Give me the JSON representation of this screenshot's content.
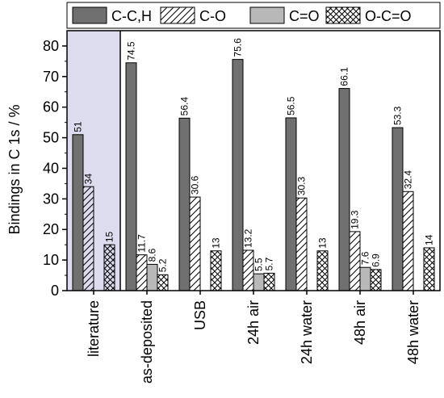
{
  "chart_data": {
    "type": "bar",
    "title": "",
    "xlabel": "",
    "ylabel": "Bindings in C 1s / %",
    "ylim": [
      0,
      85
    ],
    "yticks": [
      0,
      10,
      20,
      30,
      40,
      50,
      60,
      70,
      80
    ],
    "legend_position": "top",
    "grid": false,
    "categories": [
      "literature",
      "as-deposited",
      "USB",
      "24h air",
      "24h water",
      "48h air",
      "48h water"
    ],
    "highlight_category": "literature",
    "highlight_color": "#dcdcee",
    "series": [
      {
        "name": "C-C,H",
        "pattern": "solid-dark",
        "color": "#707070",
        "values": [
          51,
          74.5,
          56.4,
          75.6,
          56.5,
          66.1,
          53.3
        ],
        "labels": [
          "51",
          "74.5",
          "56.4",
          "75.6",
          "56.5",
          "66.1",
          "53.3"
        ]
      },
      {
        "name": "C-O",
        "pattern": "diagonal-hatch",
        "color": "#ffffff",
        "values": [
          34,
          11.7,
          30.6,
          13.2,
          30.3,
          19.3,
          32.4
        ],
        "labels": [
          "34",
          "11.7",
          "30.6",
          "13.2",
          "30.3",
          "19.3",
          "32.4"
        ]
      },
      {
        "name": "C=O",
        "pattern": "solid-light",
        "color": "#b8b8b8",
        "values": [
          null,
          8.6,
          null,
          5.5,
          null,
          7.6,
          null
        ],
        "labels": [
          null,
          "8.6",
          null,
          "5.5",
          null,
          "7.6",
          null
        ]
      },
      {
        "name": "O-C=O",
        "pattern": "cross-hatch",
        "color": "#ffffff",
        "values": [
          15,
          5.2,
          13,
          5.7,
          13,
          6.9,
          14
        ],
        "labels": [
          "15",
          "5.2",
          "13",
          "5.7",
          "13",
          "6.9",
          "14"
        ]
      }
    ]
  }
}
